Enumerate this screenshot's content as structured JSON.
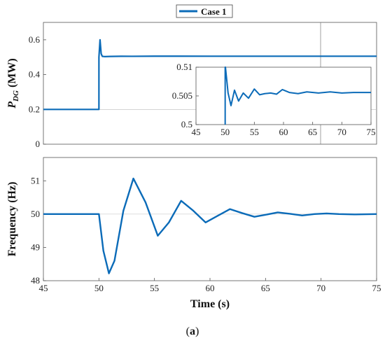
{
  "legend": {
    "entries": [
      {
        "label": "Case 1",
        "color": "#0b6bb8"
      }
    ]
  },
  "caption": {
    "prefix": "(",
    "letter": "a",
    "suffix": ")"
  },
  "chart_data": [
    {
      "type": "line",
      "ylabel": {
        "main": "P",
        "sub": "DG",
        "unit": " (MW)"
      },
      "xlim": [
        45,
        75
      ],
      "ylim": [
        0,
        0.7
      ],
      "yticks": [
        0,
        0.2,
        0.4,
        0.6
      ],
      "yticklabels": [
        "0",
        "0.2",
        "0.4",
        "0.6"
      ],
      "grid": false,
      "series": [
        {
          "name": "Case 1",
          "color": "#0b6bb8",
          "x": [
            45,
            50,
            50,
            50.1,
            50.2,
            50.3,
            50.5,
            51,
            52,
            53,
            55,
            60,
            65,
            70,
            75
          ],
          "y": [
            0.2,
            0.2,
            0.5,
            0.6,
            0.52,
            0.505,
            0.5035,
            0.5045,
            0.5055,
            0.5052,
            0.5058,
            0.5057,
            0.5056,
            0.5056,
            0.5056
          ]
        }
      ]
    },
    {
      "type": "line",
      "role": "inset",
      "xlim": [
        45,
        75
      ],
      "ylim": [
        0.5,
        0.51
      ],
      "xticks": [
        45,
        50,
        55,
        60,
        65,
        70,
        75
      ],
      "xticklabels": [
        "45",
        "50",
        "55",
        "60",
        "65",
        "70",
        "75"
      ],
      "yticks": [
        0.5,
        0.505,
        0.51
      ],
      "yticklabels": [
        "0.5",
        "0.505",
        "0.51"
      ],
      "series": [
        {
          "name": "Case 1",
          "color": "#0b6bb8",
          "x": [
            50,
            50,
            50.05,
            50.5,
            51.0,
            51.6,
            52.3,
            53.1,
            54.0,
            55.0,
            55.9,
            56.8,
            57.8,
            58.8,
            59.8,
            61,
            62.5,
            64,
            66,
            68,
            70,
            72,
            75
          ],
          "y": [
            0.5,
            0.51,
            0.51,
            0.5055,
            0.5033,
            0.506,
            0.5041,
            0.5055,
            0.5046,
            0.5062,
            0.5052,
            0.5054,
            0.5055,
            0.5053,
            0.5061,
            0.5056,
            0.5054,
            0.5057,
            0.5055,
            0.5057,
            0.5055,
            0.5056,
            0.5056
          ]
        }
      ]
    },
    {
      "type": "line",
      "xlabel": "Time (s)",
      "ylabel": "Frequency (Hz)",
      "xlim": [
        45,
        75
      ],
      "ylim": [
        48,
        51.7
      ],
      "xticks": [
        45,
        50,
        55,
        60,
        65,
        70,
        75
      ],
      "xticklabels": [
        "45",
        "50",
        "55",
        "60",
        "65",
        "70",
        "75"
      ],
      "yticks": [
        48,
        49,
        50,
        51
      ],
      "yticklabels": [
        "48",
        "49",
        "50",
        "51"
      ],
      "grid": false,
      "series": [
        {
          "name": "Case 1",
          "color": "#0b6bb8",
          "x": [
            45,
            50,
            50.4,
            50.9,
            51.4,
            52.2,
            53.1,
            54.2,
            55.3,
            56.3,
            57.4,
            58.5,
            59.6,
            60.7,
            61.8,
            62.9,
            64,
            65,
            66.1,
            67.2,
            68.3,
            69.4,
            70.5,
            71.6,
            73,
            75
          ],
          "y": [
            50,
            50,
            48.9,
            48.22,
            48.6,
            50.1,
            51.07,
            50.35,
            49.35,
            49.75,
            50.4,
            50.1,
            49.75,
            49.95,
            50.15,
            50.03,
            49.92,
            49.98,
            50.05,
            50.01,
            49.96,
            50.0,
            50.02,
            50.0,
            49.99,
            50.0
          ]
        }
      ]
    }
  ]
}
